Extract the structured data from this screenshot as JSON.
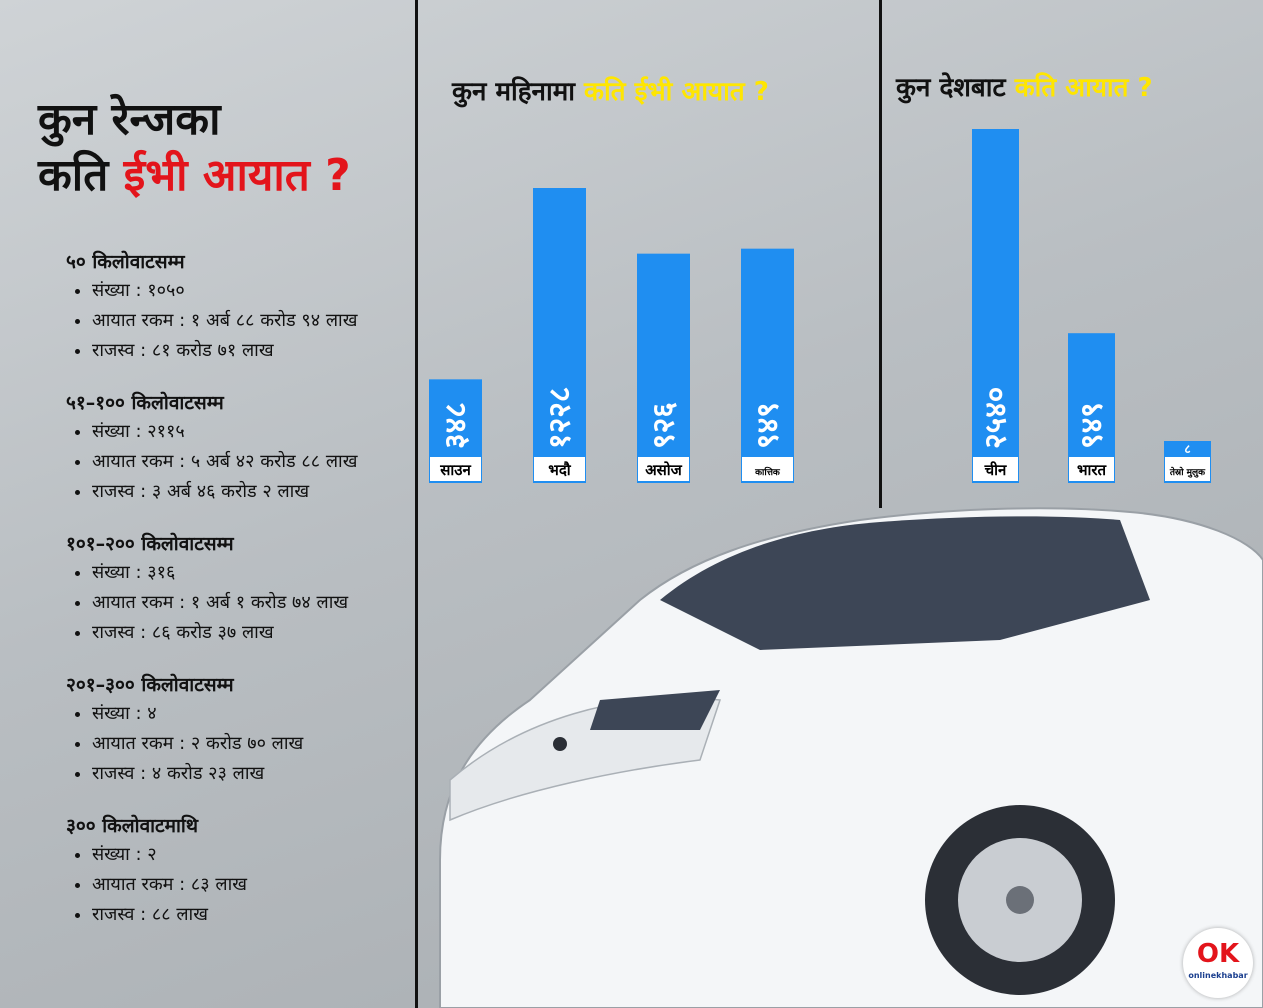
{
  "title": {
    "line1": "कुन रेन्जका",
    "line2_prefix": "कति",
    "line2_accent": "ईभी आयात ?"
  },
  "ranges": [
    {
      "heading": "५० किलोवाटसम्म",
      "items": [
        "संख्या : १०५०",
        "आयात रकम : १ अर्ब ८८ करोड ९४ लाख",
        "राजस्व : ८१ करोड ७१ लाख"
      ]
    },
    {
      "heading": "५१–१०० किलोवाटसम्म",
      "items": [
        "संख्या : २११५",
        "आयात रकम : ५ अर्ब ४२ करोड ८८ लाख",
        "राजस्व : ३ अर्ब ४६ करोड २ लाख"
      ]
    },
    {
      "heading": "१०१–२०० किलोवाटसम्म",
      "items": [
        "संख्या : ३१६",
        "आयात रकम : १ अर्ब १ करोड ७४ लाख",
        "राजस्व : ८६ करोड ३७ लाख"
      ]
    },
    {
      "heading": "२०१–३०० किलोवाटसम्म",
      "items": [
        "संख्या : ४",
        "आयात रकम : २ करोड ७० लाख",
        "राजस्व : ४ करोड २३ लाख"
      ]
    },
    {
      "heading": "३०० किलोवाटमाथि",
      "items": [
        "संख्या : २",
        "आयात रकम : ८३ लाख",
        "राजस्व : ८८ लाख"
      ]
    }
  ],
  "chart_data": [
    {
      "type": "bar",
      "title_prefix": "कुन महिनामा",
      "title_accent": "कति ईभी आयात ?",
      "categories": [
        "साउन",
        "भदौ",
        "असोज",
        "कात्तिक"
      ],
      "values": [
        348,
        1228,
        926,
        949
      ],
      "value_labels": [
        "३४८",
        "१२२८",
        "९२६",
        "९४९"
      ],
      "bar_color": "#1f8ef1"
    },
    {
      "type": "bar",
      "title_prefix": "कुन देशबाट",
      "title_accent": "कति आयात ?",
      "categories": [
        "चीन",
        "भारत",
        "तेस्रो मुलुक"
      ],
      "values": [
        2540,
        949,
        8
      ],
      "value_labels": [
        "२५४०",
        "९४९",
        "८"
      ],
      "bar_color": "#1f8ef1"
    }
  ],
  "logo": {
    "mark": "OK",
    "text": "onlinekhabar"
  }
}
